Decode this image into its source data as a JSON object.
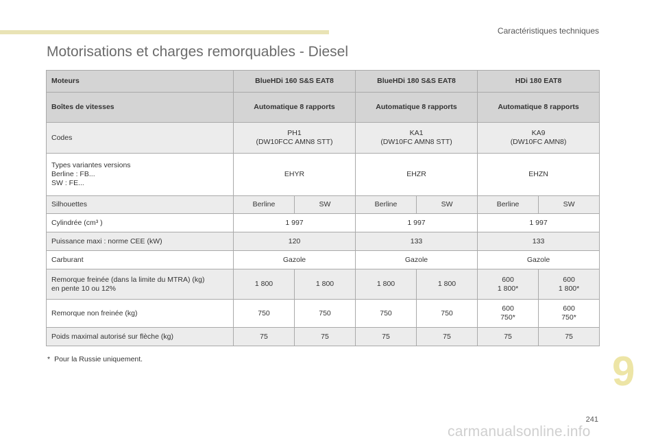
{
  "header": {
    "section_title": "Caractéristiques techniques"
  },
  "title": "Motorisations et charges remorquables - Diesel",
  "table": {
    "engines_label": "Moteurs",
    "engines": [
      "BlueHDi 160 S&S EAT8",
      "BlueHDi 180 S&S EAT8",
      "HDi 180 EAT8"
    ],
    "gearbox_label": "Boîtes de vitesses",
    "gearboxes": [
      "Automatique 8 rapports",
      "Automatique 8 rapports",
      "Automatique 8 rapports"
    ],
    "codes_label": "Codes",
    "codes": [
      {
        "code": "PH1",
        "detail": "(DW10FCC AMN8 STT)"
      },
      {
        "code": "KA1",
        "detail": "(DW10FC AMN8 STT)"
      },
      {
        "code": "KA9",
        "detail": "(DW10FC AMN8)"
      }
    ],
    "variants_label_lines": [
      "Types variantes versions",
      "Berline : FB...",
      "SW : FE..."
    ],
    "variants": [
      "EHYR",
      "EHZR",
      "EHZN"
    ],
    "silhouettes_label": "Silhouettes",
    "silhouettes": [
      "Berline",
      "SW",
      "Berline",
      "SW",
      "Berline",
      "SW"
    ],
    "displacement_label": "Cylindrée (cm³ )",
    "displacement": [
      "1 997",
      "1 997",
      "1 997"
    ],
    "power_label": "Puissance maxi : norme CEE (kW)",
    "power": [
      "120",
      "133",
      "133"
    ],
    "fuel_label": "Carburant",
    "fuel": [
      "Gazole",
      "Gazole",
      "Gazole"
    ],
    "braked_label_lines": [
      "Remorque freinée (dans la limite du MTRA) (kg)",
      "en pente 10 ou 12%"
    ],
    "braked": [
      [
        "1 800"
      ],
      [
        "1 800"
      ],
      [
        "1 800"
      ],
      [
        "1 800"
      ],
      [
        "600",
        "1 800*"
      ],
      [
        "600",
        "1 800*"
      ]
    ],
    "unbraked_label": "Remorque non freinée (kg)",
    "unbraked": [
      [
        "750"
      ],
      [
        "750"
      ],
      [
        "750"
      ],
      [
        "750"
      ],
      [
        "600",
        "750*"
      ],
      [
        "600",
        "750*"
      ]
    ],
    "max_weight_label": "Poids maximal autorisé sur flèche (kg)",
    "max_weight": [
      "75",
      "75",
      "75",
      "75",
      "75",
      "75"
    ]
  },
  "footnote": {
    "star": "*",
    "text": "Pour la Russie uniquement."
  },
  "chapter_number": "9",
  "page_number": "241",
  "watermark": "carmanualsonline.info"
}
